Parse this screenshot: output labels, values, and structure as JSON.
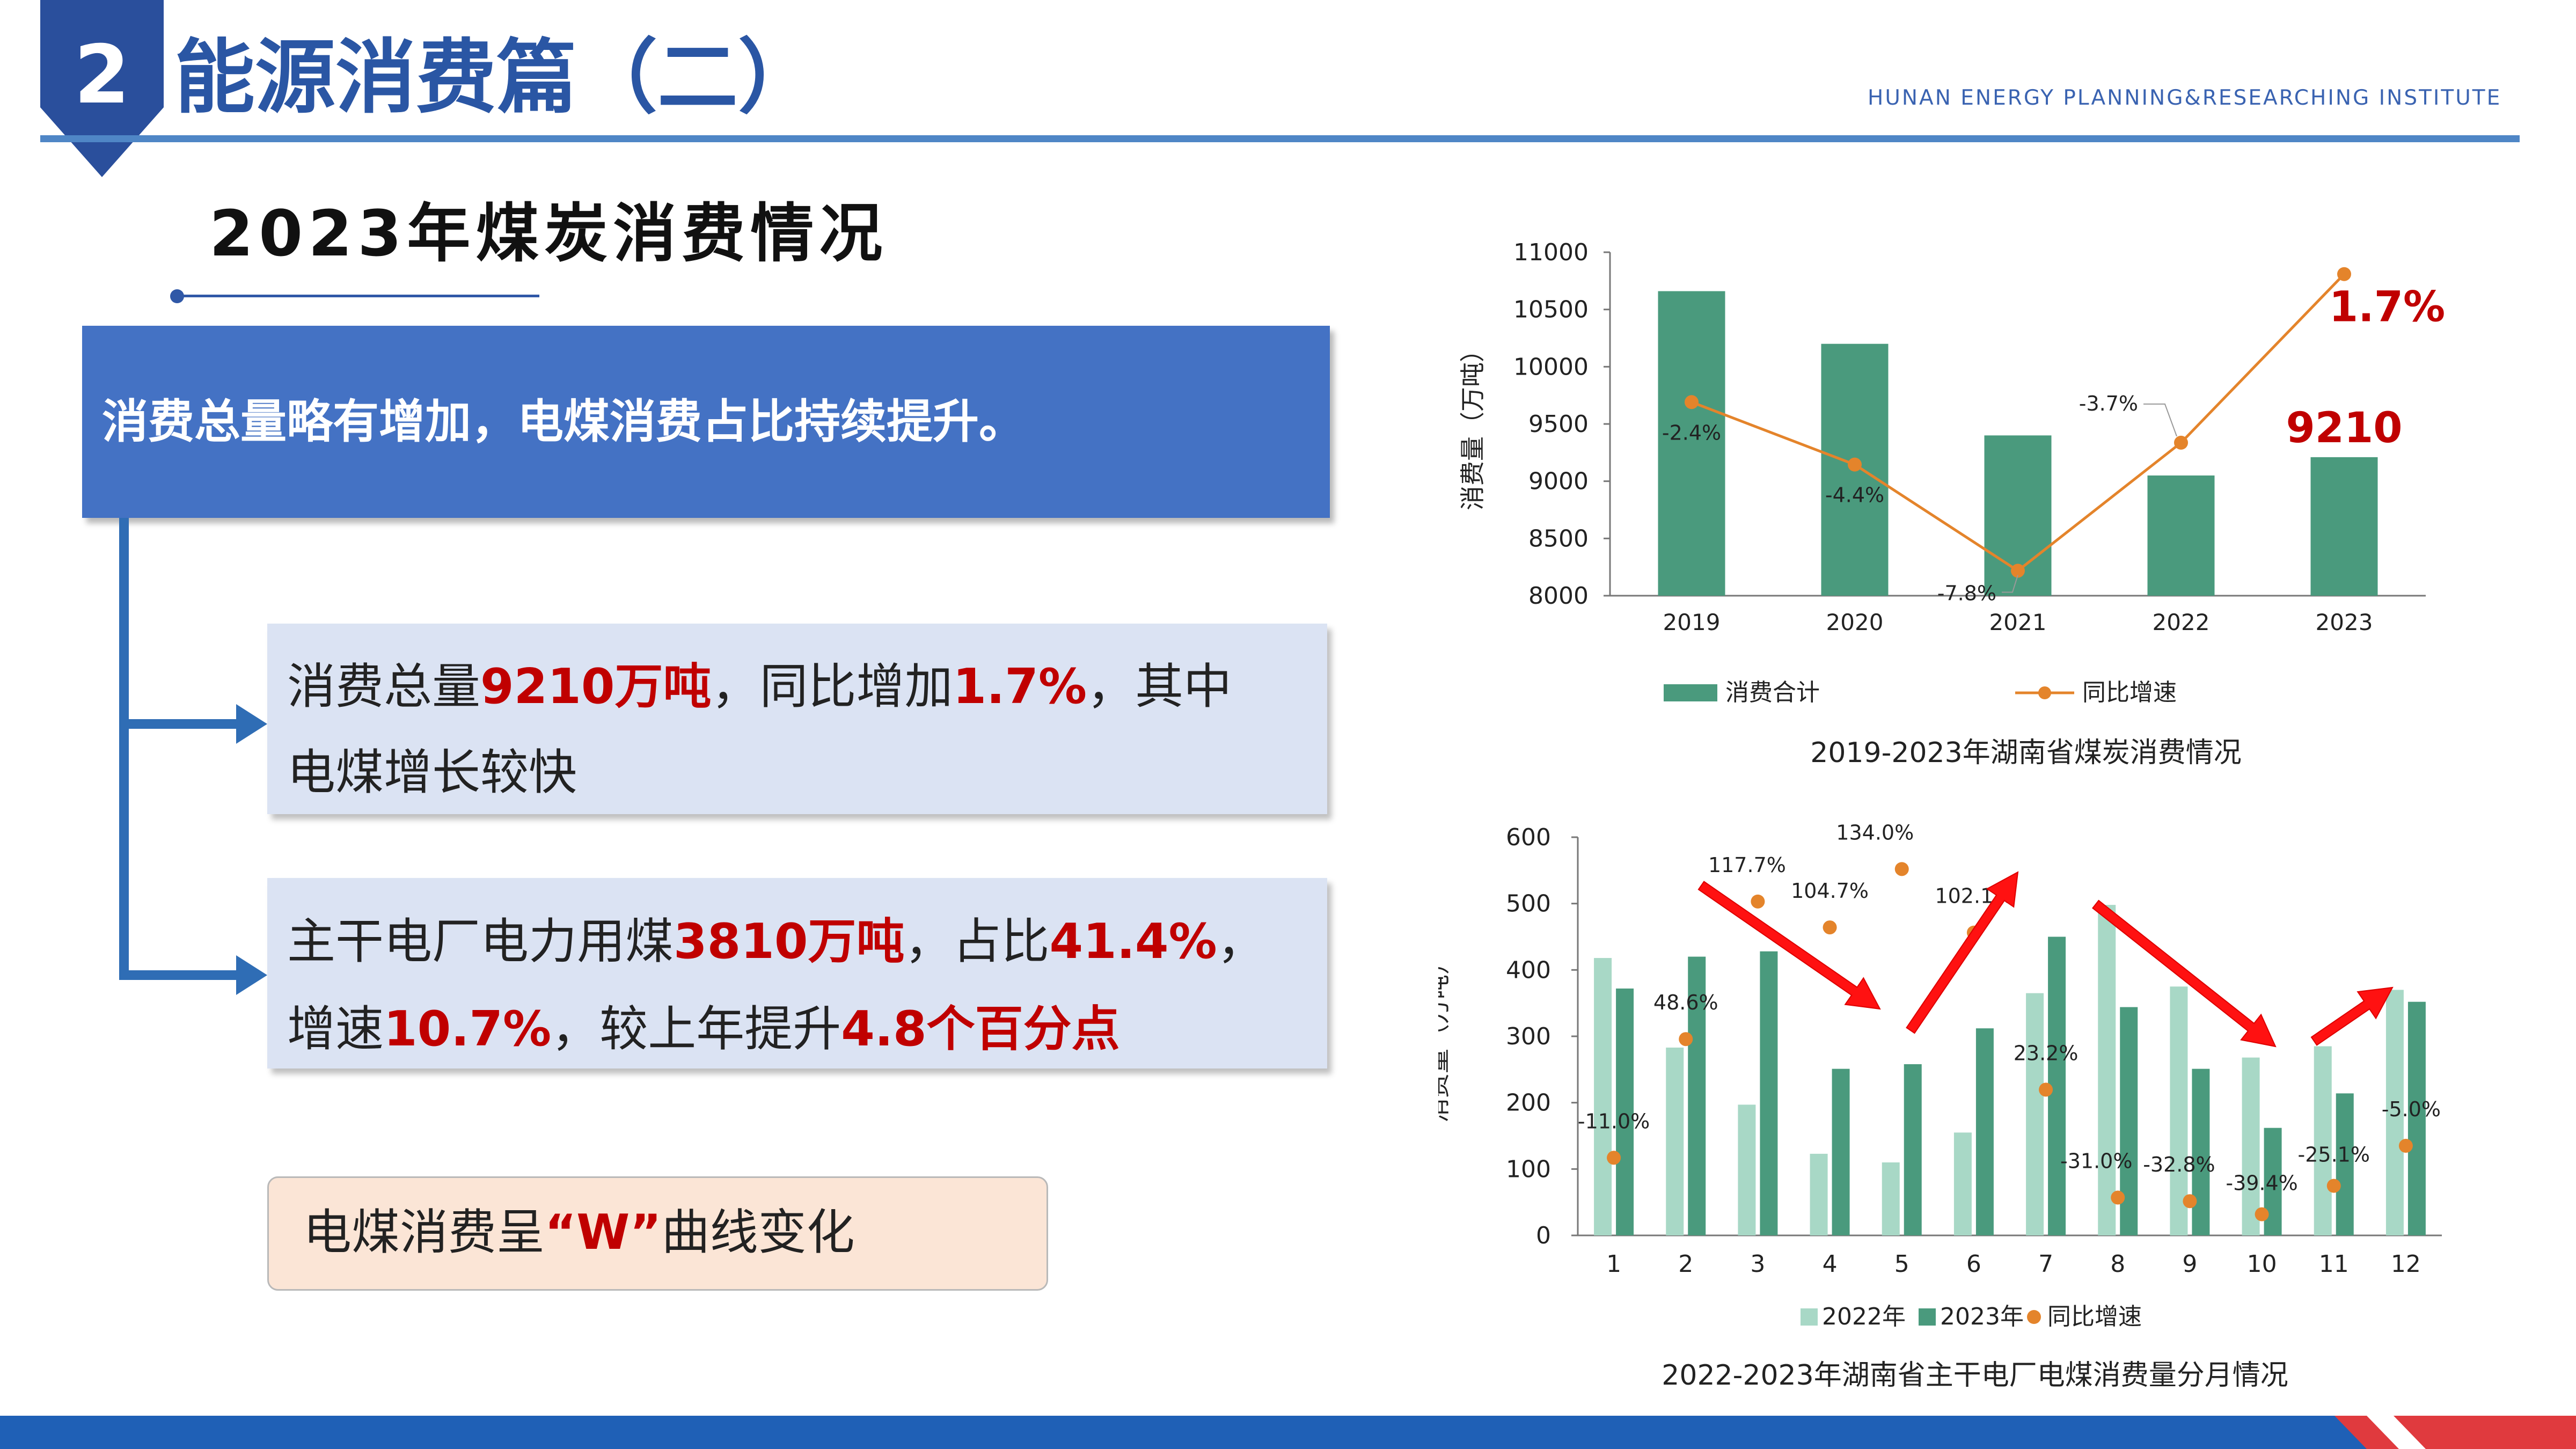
{
  "header": {
    "section_number": "2",
    "title": "能源消费篇（二）",
    "institute": "HUNAN ENERGY PLANNING&RESEARCHING INSTITUTE"
  },
  "subtitle": "2023年煤炭消费情况",
  "summary": "消费总量略有增加，电煤消费占比持续提升。",
  "point1": {
    "l1_a": "消费总量",
    "l1_b": "9210万吨",
    "l1_c": "，同比增加",
    "l1_d": "1.7%",
    "l1_e": "，其中",
    "l2": "电煤增长较快"
  },
  "point2": {
    "l1_a": "主干电厂电力用煤",
    "l1_b": "3810万吨",
    "l1_c": "，占比",
    "l1_d": "41.4%",
    "l1_e": "，",
    "l2_a": "增速",
    "l2_b": "10.7%",
    "l2_c": "，较上年提升",
    "l2_d": "4.8个百分点"
  },
  "w_note": {
    "a": "电煤消费呈",
    "b": "“W”",
    "c": "曲线变化"
  },
  "colors": {
    "dark_green": "#4a9a7d",
    "light_green": "#a8d8c6",
    "orange": "#e4842b",
    "red": "#c00000",
    "blue": "#4472c4"
  },
  "chart_data": [
    {
      "type": "bar",
      "title": "2019-2023年湖南省煤炭消费情况",
      "ylabel": "消费量（万吨）",
      "ylim": [
        8000,
        11000
      ],
      "yticks": [
        8000,
        8500,
        9000,
        9500,
        10000,
        10500,
        11000
      ],
      "categories": [
        "2019",
        "2020",
        "2021",
        "2022",
        "2023"
      ],
      "series": [
        {
          "name": "消费合计",
          "type": "bar",
          "values": [
            10660,
            10200,
            9400,
            9050,
            9210
          ]
        },
        {
          "name": "同比增速",
          "type": "line",
          "values": [
            -2.4,
            -4.4,
            -7.8,
            -3.7,
            1.7
          ],
          "labels": [
            "-2.4%",
            "-4.4%",
            "-7.8%",
            "-3.7%",
            "1.7%"
          ]
        }
      ],
      "annotations": [
        "9210",
        "1.7%"
      ],
      "legend": "bottom"
    },
    {
      "type": "bar",
      "title": "2022-2023年湖南省主干电厂电煤消费量分月情况",
      "ylabel": "消费量（万吨）",
      "ylim": [
        0,
        600
      ],
      "yticks": [
        0,
        100,
        200,
        300,
        400,
        500,
        600
      ],
      "categories": [
        "1",
        "2",
        "3",
        "4",
        "5",
        "6",
        "7",
        "8",
        "9",
        "10",
        "11",
        "12"
      ],
      "series": [
        {
          "name": "2022年",
          "type": "bar",
          "values": [
            418,
            283,
            197,
            123,
            110,
            155,
            365,
            498,
            375,
            268,
            285,
            370
          ]
        },
        {
          "name": "2023年",
          "type": "bar",
          "values": [
            372,
            420,
            428,
            251,
            258,
            312,
            450,
            344,
            251,
            162,
            214,
            352
          ]
        },
        {
          "name": "同比增速",
          "type": "scatter",
          "values": [
            -11.0,
            48.6,
            117.7,
            104.7,
            134.0,
            102.1,
            23.2,
            -31.0,
            -32.8,
            -39.4,
            -25.1,
            -5.0
          ],
          "labels": [
            "-11.0%",
            "48.6%",
            "117.7%",
            "104.7%",
            "134.0%",
            "102.1%",
            "23.2%",
            "-31.0%",
            "-32.8%",
            "-39.4%",
            "-25.1%",
            "-5.0%"
          ]
        }
      ],
      "legend": "bottom"
    }
  ]
}
